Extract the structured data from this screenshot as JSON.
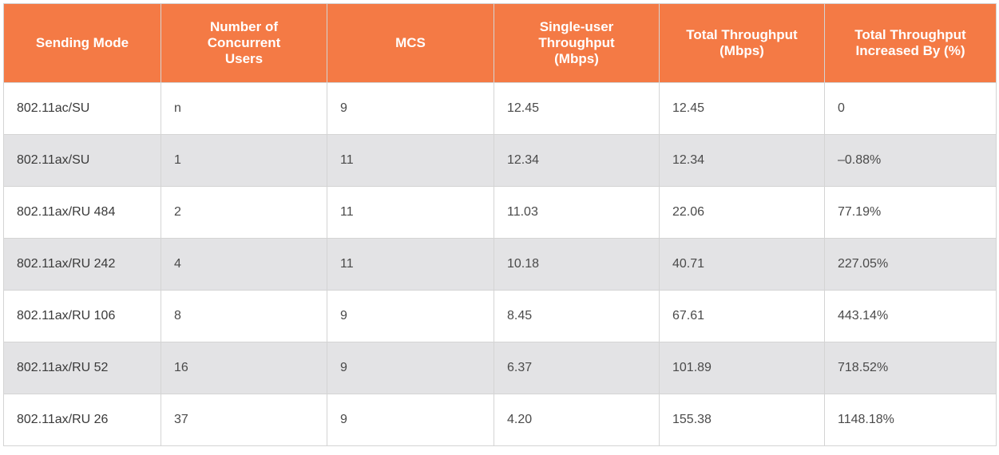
{
  "table": {
    "headers": [
      "Sending Mode",
      "Number of\nConcurrent\nUsers",
      "MCS",
      "Single-user\nThroughput\n(Mbps)",
      "Total Throughput\n(Mbps)",
      "Total Throughput\nIncreased By (%)"
    ],
    "rows": [
      [
        "802.11ac/SU",
        "n",
        "9",
        "12.45",
        "12.45",
        "0"
      ],
      [
        "802.11ax/SU",
        "1",
        "11",
        "12.34",
        "12.34",
        "–0.88%"
      ],
      [
        "802.11ax/RU 484",
        "2",
        "11",
        "11.03",
        "22.06",
        "77.19%"
      ],
      [
        "802.11ax/RU 242",
        "4",
        "11",
        "10.18",
        "40.71",
        "227.05%"
      ],
      [
        "802.11ax/RU 106",
        "8",
        "9",
        "8.45",
        "67.61",
        "443.14%"
      ],
      [
        "802.11ax/RU 52",
        "16",
        "9",
        "6.37",
        "101.89",
        "718.52%"
      ],
      [
        "802.11ax/RU 26",
        "37",
        "9",
        "4.20",
        "155.38",
        "1148.18%"
      ]
    ]
  },
  "colors": {
    "header_bg": "#f47a45",
    "header_text": "#ffffff",
    "row_alt_bg": "#e3e3e5",
    "grid_line": "#d4d4d4"
  }
}
